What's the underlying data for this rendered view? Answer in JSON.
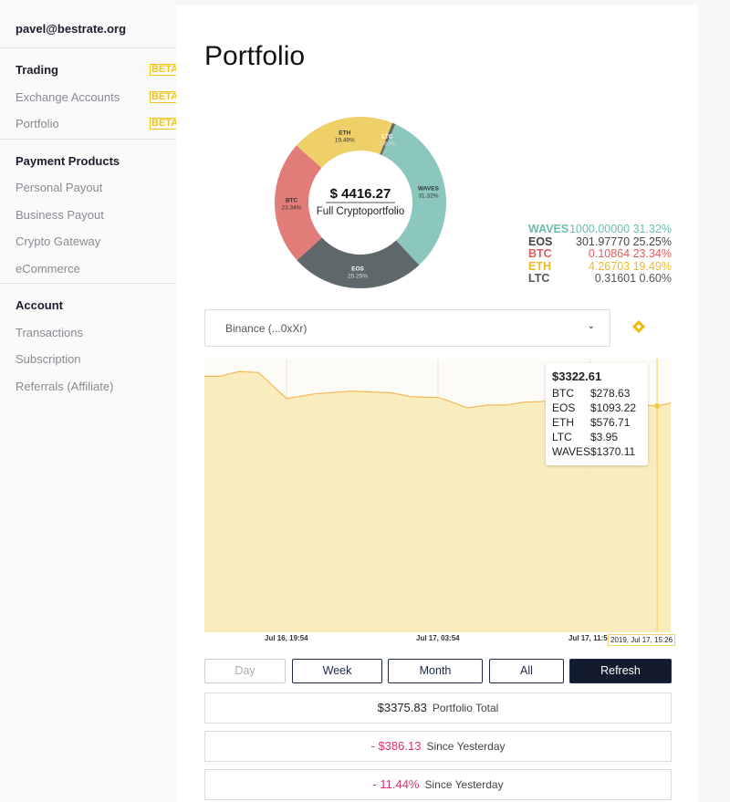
{
  "sidebar": {
    "email": "pavel@bestrate.org",
    "badge": "BETA",
    "sections": [
      {
        "title": "Trading",
        "items": [
          "Exchange Accounts",
          "Portfolio"
        ]
      },
      {
        "title": "Payment Products",
        "items": [
          "Personal Payout",
          "Business Payout",
          "Crypto Gateway",
          "eCommerce"
        ]
      },
      {
        "title": "Account",
        "items": [
          "Transactions",
          "Subscription",
          "Referrals (Affiliate)"
        ]
      }
    ]
  },
  "page_title": "Portfolio",
  "donut": {
    "total": "$ 4416.27",
    "subtitle": "Full Cryptoportfolio",
    "slices": [
      {
        "name": "WAVES",
        "pct": 31.32,
        "label": "31.32%",
        "color": "#8bc7bd"
      },
      {
        "name": "EOS",
        "pct": 25.25,
        "label": "25.25%",
        "color": "#5e6769"
      },
      {
        "name": "BTC",
        "pct": 23.34,
        "label": "23.34%",
        "color": "#e27c78"
      },
      {
        "name": "ETH",
        "pct": 19.49,
        "label": "19.49%",
        "color": "#efcf67"
      },
      {
        "name": "LTC",
        "pct": 0.6,
        "label": "0.60%",
        "color": "#666"
      }
    ]
  },
  "legend": [
    {
      "name": "WAVES",
      "amount": "1000.00000",
      "pct": "31.32%",
      "color": "#6dbcae"
    },
    {
      "name": "EOS",
      "amount": "301.97770",
      "pct": "25.25%",
      "color": "#444"
    },
    {
      "name": "BTC",
      "amount": "0.10864",
      "pct": "23.34%",
      "color": "#e05c5c"
    },
    {
      "name": "ETH",
      "amount": "4.26703",
      "pct": "19.49%",
      "color": "#edbb2a"
    },
    {
      "name": "LTC",
      "amount": "0.31601",
      "pct": "0.60%",
      "color": "#555"
    }
  ],
  "exchange_select": {
    "value": "Binance (...0xXr)",
    "icon": "binance-icon"
  },
  "chart_data": {
    "type": "area",
    "ylim": [
      0,
      4018
    ],
    "color": "#f5b95a",
    "fill": "#faedbd",
    "x": [
      "2019-07-16T15:34",
      "2019-07-16T16:25",
      "2019-07-16T17:24",
      "2019-07-16T18:25",
      "2019-07-16T19:54",
      "2019-07-16T21:23",
      "2019-07-16T23:19",
      "2019-07-17T01:29",
      "2019-07-17T02:26",
      "2019-07-17T03:54",
      "2019-07-17T04:22",
      "2019-07-17T05:25",
      "2019-07-17T06:32",
      "2019-07-17T07:29",
      "2019-07-17T08:27",
      "2019-07-17T09:39",
      "2019-07-17T11:05",
      "2019-07-17T12:32",
      "2019-07-17T13:59",
      "2019-07-17T15:26",
      "2019-07-17T16:09"
    ],
    "values": [
      3759,
      3759,
      3827,
      3813,
      3432,
      3500,
      3541,
      3514,
      3459,
      3446,
      3405,
      3296,
      3337,
      3337,
      3378,
      3391,
      3391,
      3378,
      3350,
      3322.61,
      3364
    ],
    "xticks": [
      "Jul 16, 19:54",
      "Jul 17, 03:54",
      "Jul 17, 11:5"
    ],
    "tooltip": {
      "x_label": "2019, Jul 17, 15:26",
      "total": "$3322.61",
      "rows": [
        [
          "BTC",
          "$278.63"
        ],
        [
          "EOS",
          "$1093.22"
        ],
        [
          "ETH",
          "$576.71"
        ],
        [
          "LTC",
          "$3.95"
        ],
        [
          "WAVES",
          "$1370.11"
        ]
      ]
    }
  },
  "range_buttons": [
    "Day",
    "Week",
    "Month",
    "All"
  ],
  "refresh": "Refresh",
  "stats": [
    {
      "value": "$3375.83",
      "label": "Portfolio Total",
      "neg": false
    },
    {
      "value": "- $386.13",
      "label": "Since Yesterday",
      "neg": true
    },
    {
      "value": "- 11.44%",
      "label": "Since Yesterday",
      "neg": true
    }
  ]
}
